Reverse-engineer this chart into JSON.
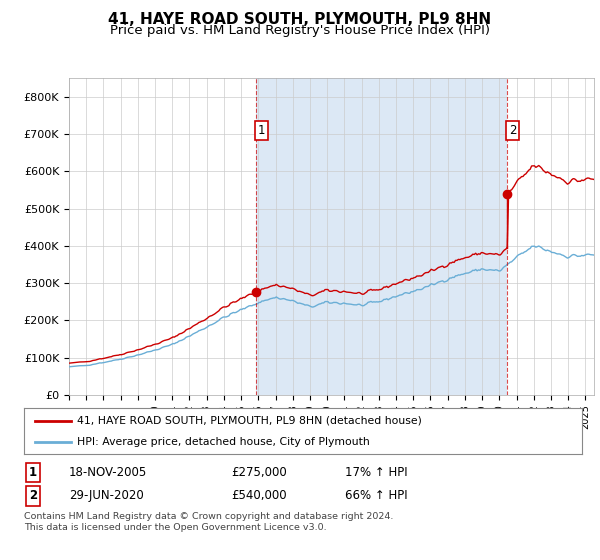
{
  "title": "41, HAYE ROAD SOUTH, PLYMOUTH, PL9 8HN",
  "subtitle": "Price paid vs. HM Land Registry's House Price Index (HPI)",
  "title_fontsize": 11,
  "subtitle_fontsize": 9.5,
  "background_color": "#ffffff",
  "plot_bg_color": "#ffffff",
  "shade_color": "#dce8f5",
  "ylabel_ticks": [
    "£0",
    "£100K",
    "£200K",
    "£300K",
    "£400K",
    "£500K",
    "£600K",
    "£700K",
    "£800K"
  ],
  "ytick_values": [
    0,
    100000,
    200000,
    300000,
    400000,
    500000,
    600000,
    700000,
    800000
  ],
  "ylim": [
    0,
    850000
  ],
  "xlim_start": 1995.0,
  "xlim_end": 2025.5,
  "hpi_color": "#6aaed6",
  "price_color": "#cc0000",
  "marker_color": "#cc0000",
  "sale1_year": 2005,
  "sale1_month": 11,
  "sale1_y": 275000,
  "sale2_year": 2020,
  "sale2_month": 6,
  "sale2_y": 540000,
  "annotation1_label": "1",
  "annotation2_label": "2",
  "legend_line1": "41, HAYE ROAD SOUTH, PLYMOUTH, PL9 8HN (detached house)",
  "legend_line2": "HPI: Average price, detached house, City of Plymouth",
  "table_row1": [
    "1",
    "18-NOV-2005",
    "£275,000",
    "17% ↑ HPI"
  ],
  "table_row2": [
    "2",
    "29-JUN-2020",
    "£540,000",
    "66% ↑ HPI"
  ],
  "footer": "Contains HM Land Registry data © Crown copyright and database right 2024.\nThis data is licensed under the Open Government Licence v3.0.",
  "grid_color": "#cccccc",
  "dashed_color": "#cc0000"
}
